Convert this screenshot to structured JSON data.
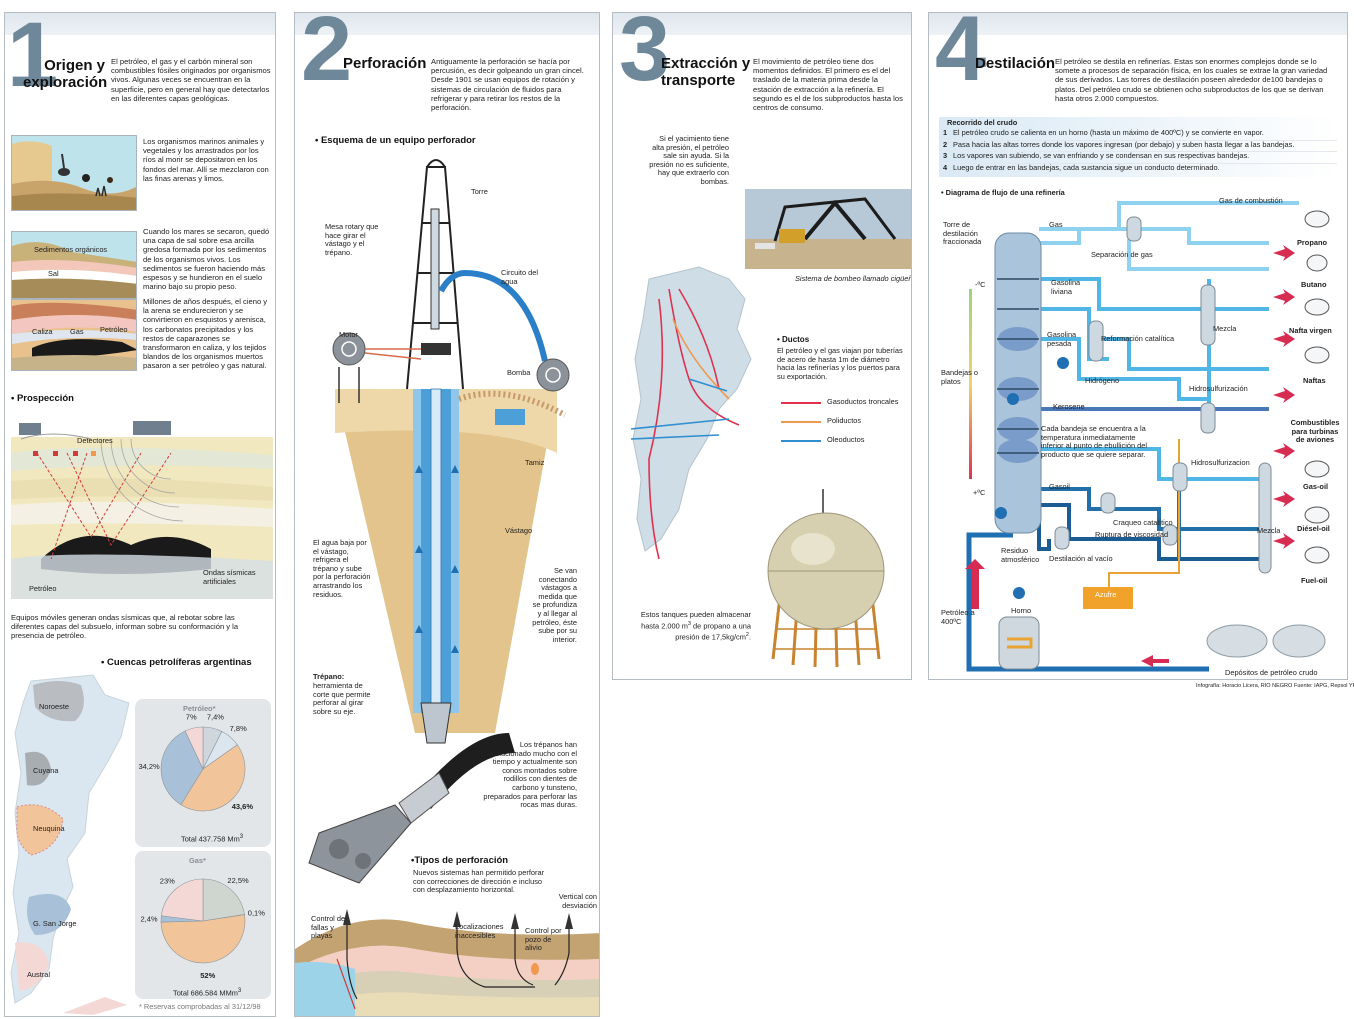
{
  "p1": {
    "num": "1",
    "title_l1": "Origen y",
    "title_l2": "exploración",
    "intro": "El petróleo, el gas y el carbón mineral son combustibles fósiles originados por organismos vivos. Algunas veces se encuentran en la superficie, pero en general hay que detectarlos en las diferentes capas geológicas.",
    "step1": "Los organismos marinos animales y vegetales y los arrastrados por los ríos al morir se depositaron en los fondos del mar. Allí se mezclaron con las finas arenas y limos.",
    "step2": "Cuando los mares se secaron, quedó una capa de sal sobre esa arcilla gredosa formada por los sedimentos de los organismos vivos. Los sedimentos se fueron haciendo más espesos y se hundieron en el suelo marino bajo su propio peso.",
    "step2_lbl_sed": "Sedimentos orgánicos",
    "step2_lbl_sal": "Sal",
    "step3": "Millones de años después, el cieno y la arena se endurecieron y se convirtieron en esquistos y arenisca, los carbonatos precipitados y los restos de caparazones se transformaron en caliza, y los tejidos blandos de los organismos muertos pasaron a ser petróleo y gas natural.",
    "step3_lbl_caliza": "Caliza",
    "step3_lbl_gas": "Gas",
    "step3_lbl_petroleo": "Petróleo",
    "prosp_title": "• Prospección",
    "prosp_detectores": "Detectores",
    "prosp_petroleo": "Petróleo",
    "prosp_ondas": "Ondas sísmicas artificiales",
    "prosp_caption": "Equipos móviles generan ondas sísmicas que, al rebotar sobre las diferentes capas del subsuelo, informan sobre su conformación y la presencia de petróleo.",
    "cuencas_title": "• Cuencas petrolíferas argentinas",
    "basins": [
      "Noroeste",
      "Cuyana",
      "Neuquina",
      "G. San Jorge",
      "Austral"
    ],
    "petroleo_pie_title": "Petróleo*",
    "petroleo_total": "Total 437.758 Mm",
    "petroleo_total_sup": "3",
    "gas_pie_title": "Gas*",
    "gas_total": "Total 686.584 MMm",
    "gas_total_sup": "3",
    "footnote": "* Reservas comprobadas al 31/12/98"
  },
  "chart_data": [
    {
      "type": "pie",
      "title": "Petróleo*",
      "labels": [
        "7,4%",
        "7,8%",
        "43,6%",
        "34,2%",
        "7%"
      ],
      "values": [
        7.4,
        7.8,
        43.6,
        34.2,
        7.0
      ],
      "colors": [
        "#cfd6dc",
        "#dbe6ee",
        "#f2c49a",
        "#a9c1d8",
        "#f3d8d6"
      ]
    },
    {
      "type": "pie",
      "title": "Gas*",
      "labels": [
        "22,5%",
        "0,1%",
        "52%",
        "2,4%",
        "23%"
      ],
      "values": [
        22.5,
        0.1,
        52.0,
        2.4,
        23.0
      ],
      "colors": [
        "#cfd6cf",
        "#dbe6ee",
        "#f2c49a",
        "#a9c1d8",
        "#f3d8d6"
      ]
    }
  ],
  "p2": {
    "num": "2",
    "title": "Perforación",
    "intro": "Antiguamente la perforación se hacía por percusión, es decir golpeando un gran cincel. Desde 1901 se usan equipos de rotación y sistemas de circulación de fluidos para refrigerar y para retirar los restos de la perforación.",
    "esquema_title": "• Esquema de un equipo perforador",
    "torre": "Torre",
    "mesa": "Mesa rotary que hace girar el vástago y el trépano.",
    "circuito": "Circuito del agua",
    "motor": "Motor",
    "bomba": "Bomba",
    "tamiz": "Tamiz",
    "vastago": "Vástago",
    "agua": "El agua baja por el vástago, refrigera el trépano y sube por la perforación arrastrando los residuos.",
    "conectando": "Se van conectando vástagos a medida que se profundiza y al llegar al petróleo, éste sube por su interior.",
    "trepano_title": "Trépano:",
    "trepano": "herramienta de corte que permite perforar al girar sobre su eje.",
    "trepanos_evol": "Los trépanos han evolucionado mucho con el tiempo y actualmente son conos montados sobre rodillos con dientes de carbono y tunsteno, preparados para perforar las rocas mas duras.",
    "tipos_title": "•Tipos de perforación",
    "tipos_intro": "Nuevos sistemas han permitido perforar con correcciones de dirección e incluso con desplazamiento horizontal.",
    "tipo_control_fallas": "Control de fallas y playas",
    "tipo_localizaciones": "Localizaciones inaccesibles",
    "tipo_control_pozo": "Control por pozo de alivio",
    "tipo_vertical": "Vertical con desviación"
  },
  "p3": {
    "num": "3",
    "title_l1": "Extracción y",
    "title_l2": "transporte",
    "intro": "El movimiento de petróleo tiene dos momentos definidos. El primero es el del traslado de la materia prima desde la estación de extracción a la refinería. El segundo es el de los subproductos hasta los centros de consumo.",
    "yacimiento": "Si el yacimiento tiene alta presión, el petróleo sale sin ayuda. Si la presión no es suficiente, hay que extraerlo con bombas.",
    "photo_caption": "Sistema de bombeo llamado cigüeña.",
    "ductos_title": "• Ductos",
    "ductos_text": "El petróleo y el gas viajan por tuberías de acero de hasta 1m de diámetro hacia las refinerías y los puertos para su exportación.",
    "legend": [
      {
        "label": "Gasoductos troncales",
        "color": "#e0324f"
      },
      {
        "label": "Poliductos",
        "color": "#f0984e"
      },
      {
        "label": "Oleoductos",
        "color": "#2f8fd0"
      }
    ],
    "tanques": "Estos tanques pueden almacenar hasta 2.000 m",
    "tanques_sup": "3",
    "tanques2": "de propano a una presión de 17,5kg/cm",
    "tanques2_sup": "2",
    "tanques2_end": "."
  },
  "p4": {
    "num": "4",
    "title": "Destilación",
    "intro": "El petróleo se destila en refinerías. Estas son enormes complejos donde se lo somete a procesos de separación física, en los cuales se extrae la gran variedad de sus derivados. Las torres de destilación poseen alrededor de100 bandejas o platos. Del petróleo crudo se obtienen ocho subproductos de los que se derivan hasta otros 2.000 compuestos.",
    "recorrido_title": "Recorrido del crudo",
    "steps": [
      {
        "n": "1",
        "text": "El petróleo crudo se calienta en un horno (hasta un máximo de 400ºC) y se convierte en vapor."
      },
      {
        "n": "2",
        "text": "Pasa hacia las altas torres donde los vapores ingresan (por debajo) y suben hasta llegar a las bandejas."
      },
      {
        "n": "3",
        "text": "Los vapores van subiendo, se van enfriando y se condensan en sus respectivas bandejas."
      },
      {
        "n": "4",
        "text": "Luego de entrar en las bandejas, cada sustancia sigue un conducto determinado."
      }
    ],
    "diagram_title": "• Diagrama de flujo de una refinería",
    "torre": "Torre de destilación fraccionada",
    "minus_c": "-ºC",
    "plus_c": "+ºC",
    "bandejas": "Bandejas o platos",
    "residuo": "Residuo atmosférico",
    "petroleo": "Petróleo a 400ºC",
    "horno": "Horno",
    "depositos": "Depósitos de petróleo crudo",
    "gas_combustion": "Gas de combustión",
    "gas": "Gas",
    "separacion": "Separación de gas",
    "gasolina_liviana": "Gasolina liviana",
    "gasolina_pesada": "Gasolina pesada",
    "reformacion": "Reformación catalítica",
    "hidrogeno": "Hidrógeno",
    "mezcla": "Mezcla",
    "hidrosulf1": "Hidrosulfurización",
    "kerosene": "Kerosene",
    "cada_bandeja": "Cada bandeja se encuentra a la temperatura inmediatamente inferior al punto de ebullición del producto que se quiere separar.",
    "hidrosulf2": "Hidrosulfurizacion",
    "gasoil": "Gasoil",
    "craqueo": "Craqueo catalítico",
    "ruptura": "Ruptura de viscosidad",
    "destilacion_vacio": "Destilación al vacío",
    "mezcla2": "Mezcla",
    "azufre": "Azufre",
    "products": [
      "Propano",
      "Butano",
      "Nafta virgen",
      "Naftas",
      "Combustibles para turbinas de aviones",
      "Gas-oil",
      "Diésel-oil",
      "Fuel-oil"
    ],
    "credit": "Infografía: Horacio Licera, RIO NEGRO",
    "source": "Fuente: IAPG, Repsol YPF"
  }
}
